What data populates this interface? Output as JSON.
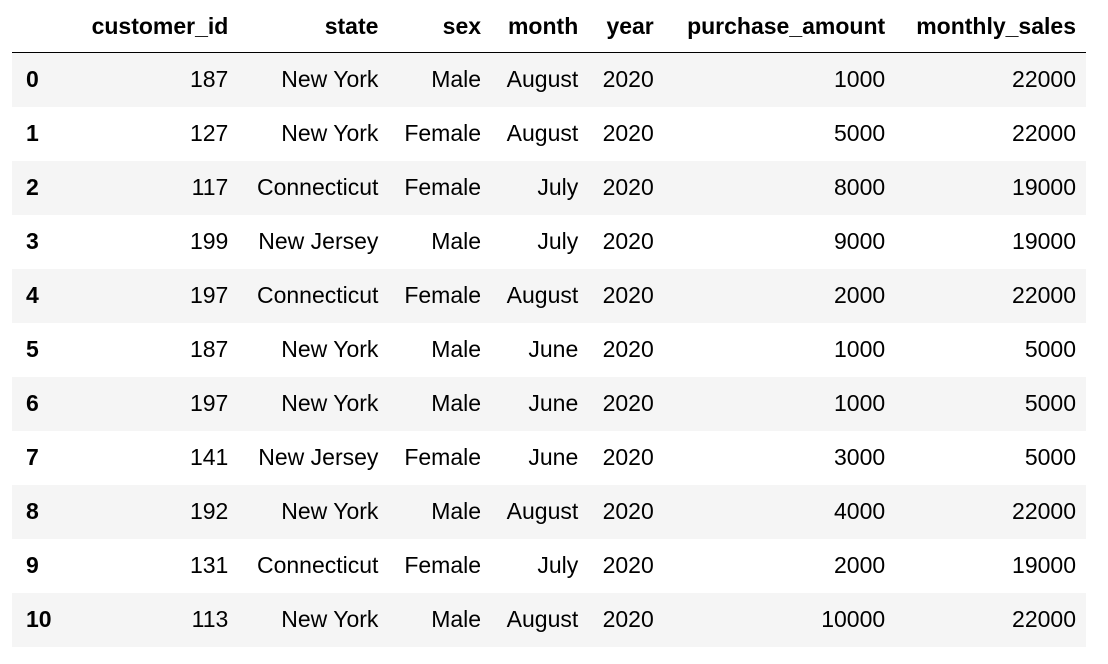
{
  "dataframe": {
    "columns": [
      "customer_id",
      "state",
      "sex",
      "month",
      "year",
      "purchase_amount",
      "monthly_sales"
    ],
    "index_header": "",
    "rows": [
      {
        "index": "0",
        "cells": [
          "187",
          "New York",
          "Male",
          "August",
          "2020",
          "1000",
          "22000"
        ]
      },
      {
        "index": "1",
        "cells": [
          "127",
          "New York",
          "Female",
          "August",
          "2020",
          "5000",
          "22000"
        ]
      },
      {
        "index": "2",
        "cells": [
          "117",
          "Connecticut",
          "Female",
          "July",
          "2020",
          "8000",
          "19000"
        ]
      },
      {
        "index": "3",
        "cells": [
          "199",
          "New Jersey",
          "Male",
          "July",
          "2020",
          "9000",
          "19000"
        ]
      },
      {
        "index": "4",
        "cells": [
          "197",
          "Connecticut",
          "Female",
          "August",
          "2020",
          "2000",
          "22000"
        ]
      },
      {
        "index": "5",
        "cells": [
          "187",
          "New York",
          "Male",
          "June",
          "2020",
          "1000",
          "5000"
        ]
      },
      {
        "index": "6",
        "cells": [
          "197",
          "New York",
          "Male",
          "June",
          "2020",
          "1000",
          "5000"
        ]
      },
      {
        "index": "7",
        "cells": [
          "141",
          "New Jersey",
          "Female",
          "June",
          "2020",
          "3000",
          "5000"
        ]
      },
      {
        "index": "8",
        "cells": [
          "192",
          "New York",
          "Male",
          "August",
          "2020",
          "4000",
          "22000"
        ]
      },
      {
        "index": "9",
        "cells": [
          "131",
          "Connecticut",
          "Female",
          "July",
          "2020",
          "2000",
          "19000"
        ]
      },
      {
        "index": "10",
        "cells": [
          "113",
          "New York",
          "Male",
          "August",
          "2020",
          "10000",
          "22000"
        ]
      }
    ]
  },
  "colors": {
    "row_stripe": "#f5f5f5",
    "header_rule": "#000000",
    "text": "#000000"
  }
}
